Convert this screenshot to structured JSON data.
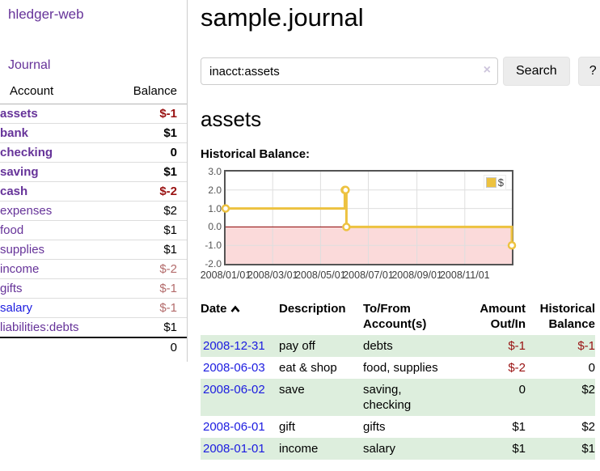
{
  "app": {
    "brand": "hledger-web",
    "nav_journal": "Journal"
  },
  "colors": {
    "link_purple": "#663399",
    "link_blue": "#1b1be0",
    "negative_strong": "#991111",
    "negative_muted": "#b36b6b",
    "row_green": "#ddeedd",
    "series_gold": "#edc240"
  },
  "sidebar": {
    "header": {
      "account": "Account",
      "balance": "Balance"
    },
    "accounts": [
      {
        "name": "assets",
        "balance": "$-1",
        "depth": 1,
        "matched": true,
        "neg": "strong",
        "link": "purple"
      },
      {
        "name": "bank",
        "balance": "$1",
        "depth": 2,
        "matched": true,
        "neg": "none",
        "link": "purple"
      },
      {
        "name": "checking",
        "balance": "0",
        "depth": 3,
        "matched": true,
        "neg": "none",
        "link": "purple"
      },
      {
        "name": "saving",
        "balance": "$1",
        "depth": 3,
        "matched": true,
        "neg": "none",
        "link": "purple"
      },
      {
        "name": "cash",
        "balance": "$-2",
        "depth": 2,
        "matched": true,
        "neg": "strong",
        "link": "purple"
      },
      {
        "name": "expenses",
        "balance": "$2",
        "depth": 1,
        "matched": false,
        "neg": "none",
        "link": "purple"
      },
      {
        "name": "food",
        "balance": "$1",
        "depth": 2,
        "matched": false,
        "neg": "none",
        "link": "purple"
      },
      {
        "name": "supplies",
        "balance": "$1",
        "depth": 2,
        "matched": false,
        "neg": "none",
        "link": "purple"
      },
      {
        "name": "income",
        "balance": "$-2",
        "depth": 1,
        "matched": false,
        "neg": "muted",
        "link": "purple"
      },
      {
        "name": "gifts",
        "balance": "$-1",
        "depth": 2,
        "matched": false,
        "neg": "muted",
        "link": "purple"
      },
      {
        "name": "salary",
        "balance": "$-1",
        "depth": 2,
        "matched": false,
        "neg": "muted",
        "link": "blue"
      },
      {
        "name": "liabilities:debts",
        "balance": "$1",
        "depth": 1,
        "matched": false,
        "neg": "none",
        "link": "purple"
      }
    ],
    "total": "0"
  },
  "main": {
    "title": "sample.journal",
    "search": {
      "value": "inacct:assets",
      "clear": "×",
      "button": "Search",
      "help": "?"
    },
    "section_title": "assets",
    "chart_label": "Historical Balance:"
  },
  "chart_data": {
    "type": "line",
    "line_mode": "steps",
    "title": "Historical Balance:",
    "series": [
      {
        "name": "$",
        "color": "#edc240",
        "points": [
          [
            "2008-01-01",
            1
          ],
          [
            "2008-06-01",
            2
          ],
          [
            "2008-06-02",
            2
          ],
          [
            "2008-06-03",
            0
          ],
          [
            "2008-12-31",
            -1
          ]
        ]
      }
    ],
    "x_range": [
      "2008-01-01",
      "2008-12-31"
    ],
    "ylim": [
      -2,
      3
    ],
    "yticks": [
      "3.0",
      "2.0",
      "1.0",
      "0.0",
      "-1.0",
      "-2.0"
    ],
    "xticks": [
      "2008/01/01",
      "2008/03/01",
      "2008/05/01",
      "2008/07/01",
      "2008/09/01",
      "2008/11/01"
    ],
    "legend": {
      "label": "$",
      "position": "top-right"
    },
    "grid": true,
    "negative_region_color": "#f7bcbc",
    "zero_line_color": "#8b0000",
    "border_color": "#545454"
  },
  "transactions": {
    "headers": {
      "date": "Date",
      "description": "Description",
      "accounts": "To/From\nAccount(s)",
      "amount": "Amount\nOut/In",
      "balance": "Historical\nBalance"
    },
    "rows": [
      {
        "date": "2008-12-31",
        "description": "pay off",
        "accounts": "debts",
        "amount": "$-1",
        "balance": "$-1"
      },
      {
        "date": "2008-06-03",
        "description": "eat & shop",
        "accounts": "food, supplies",
        "amount": "$-2",
        "balance": "0"
      },
      {
        "date": "2008-06-02",
        "description": "save",
        "accounts": "saving,\nchecking",
        "amount": "0",
        "balance": "$2"
      },
      {
        "date": "2008-06-01",
        "description": "gift",
        "accounts": "gifts",
        "amount": "$1",
        "balance": "$2"
      },
      {
        "date": "2008-01-01",
        "description": "income",
        "accounts": "salary",
        "amount": "$1",
        "balance": "$1"
      }
    ]
  }
}
